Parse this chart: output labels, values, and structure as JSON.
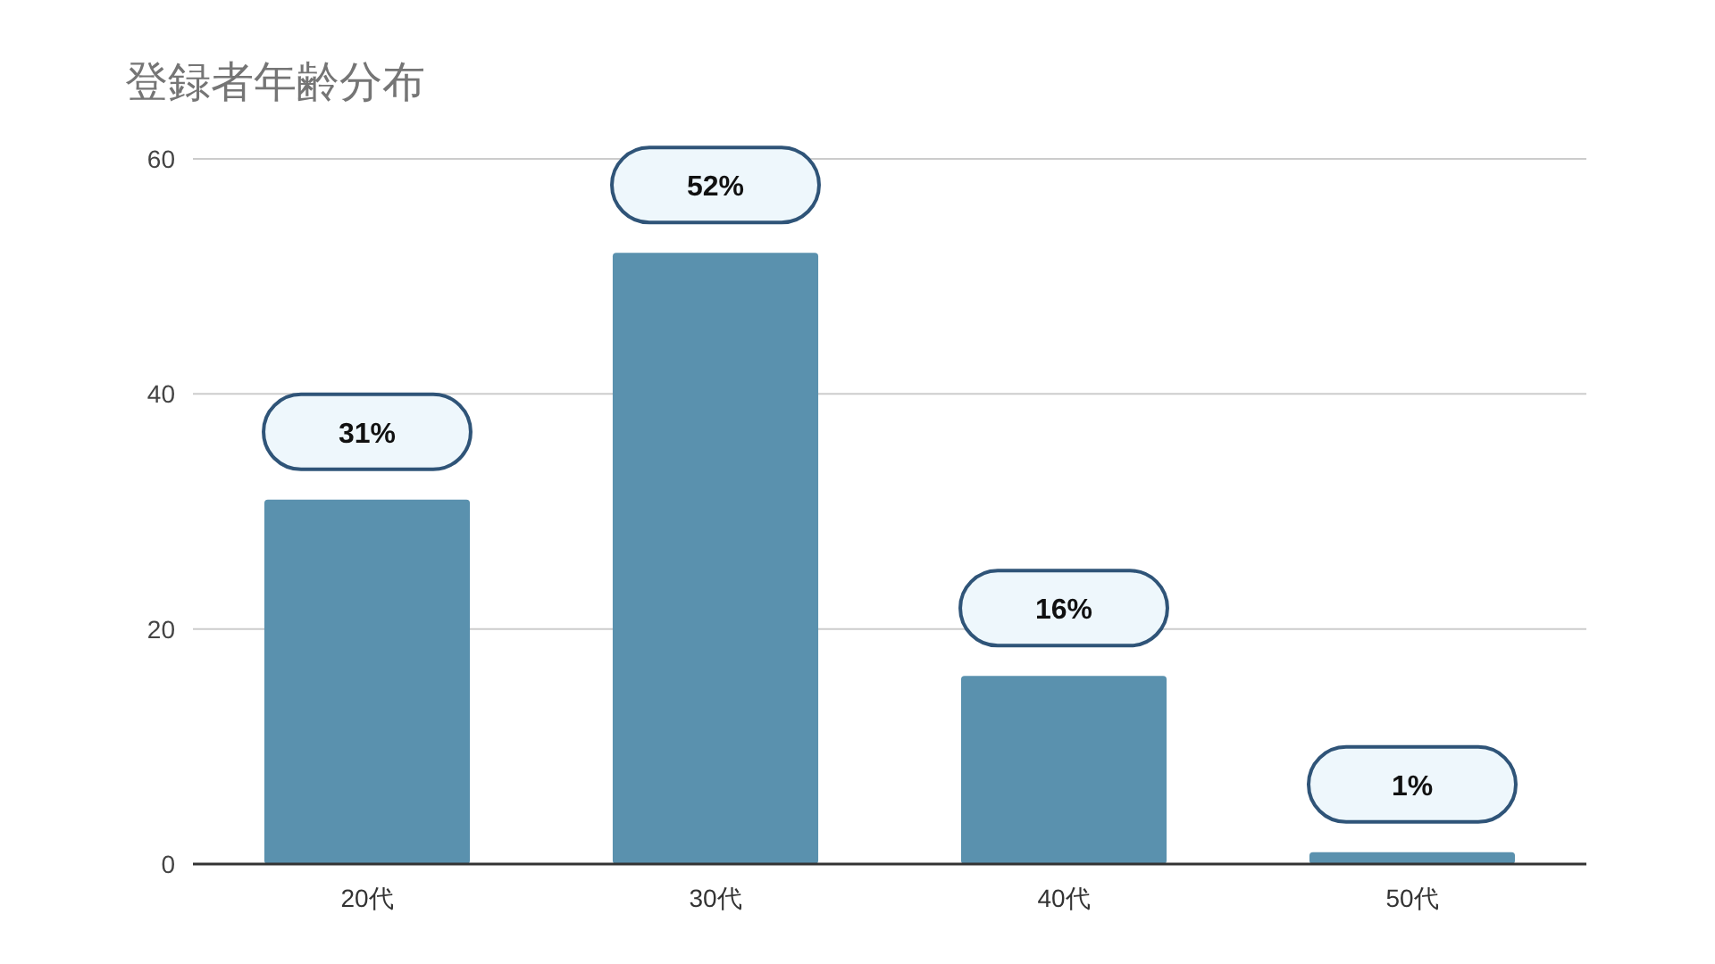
{
  "chart_data": {
    "type": "bar",
    "title": "登録者年齢分布",
    "categories": [
      "20代",
      "30代",
      "40代",
      "50代"
    ],
    "values": [
      31,
      52,
      16,
      1
    ],
    "value_labels": [
      "31%",
      "52%",
      "16%",
      "1%"
    ],
    "color": "#5a91ae",
    "ylim": [
      0,
      60
    ],
    "yticks": [
      0,
      20,
      40,
      60
    ],
    "grid": "y"
  }
}
